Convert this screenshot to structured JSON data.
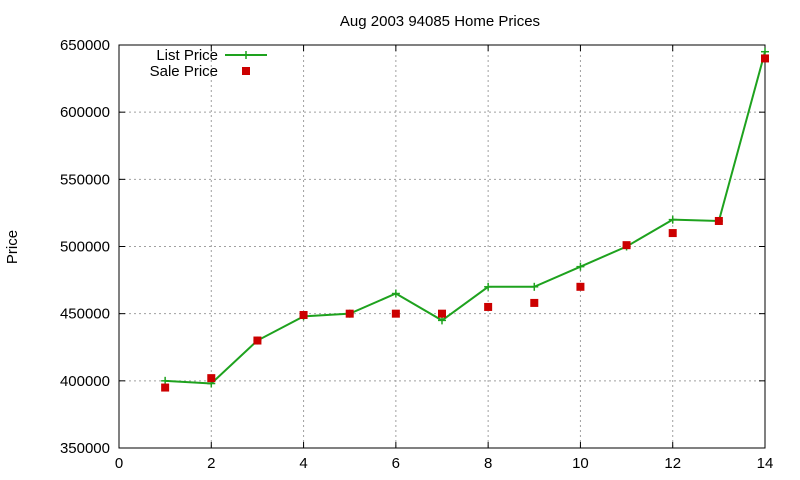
{
  "chart_data": {
    "type": "line",
    "title": "Aug 2003 94085 Home Prices",
    "xlabel": "",
    "ylabel": "Price",
    "xlim": [
      0,
      14
    ],
    "ylim": [
      350000,
      650000
    ],
    "xticks": [
      0,
      2,
      4,
      6,
      8,
      10,
      12,
      14
    ],
    "yticks": [
      350000,
      400000,
      450000,
      500000,
      550000,
      600000,
      650000
    ],
    "grid": true,
    "legend": "top-left",
    "series": [
      {
        "name": "List Price",
        "style": "lines+points",
        "color": "#1ea21e",
        "x": [
          1,
          2,
          3,
          4,
          5,
          6,
          7,
          8,
          9,
          10,
          11,
          12,
          13,
          14
        ],
        "y": [
          400000,
          398000,
          430000,
          448000,
          450000,
          465000,
          445000,
          470000,
          470000,
          485000,
          500000,
          520000,
          519000,
          645000
        ]
      },
      {
        "name": "Sale Price",
        "style": "points",
        "color": "#cc0000",
        "x": [
          1,
          2,
          3,
          4,
          5,
          6,
          7,
          8,
          9,
          10,
          11,
          12,
          13,
          14
        ],
        "y": [
          395000,
          402000,
          430000,
          449000,
          450000,
          450000,
          450000,
          455000,
          458000,
          470000,
          501000,
          510000,
          519000,
          640000
        ]
      }
    ]
  }
}
